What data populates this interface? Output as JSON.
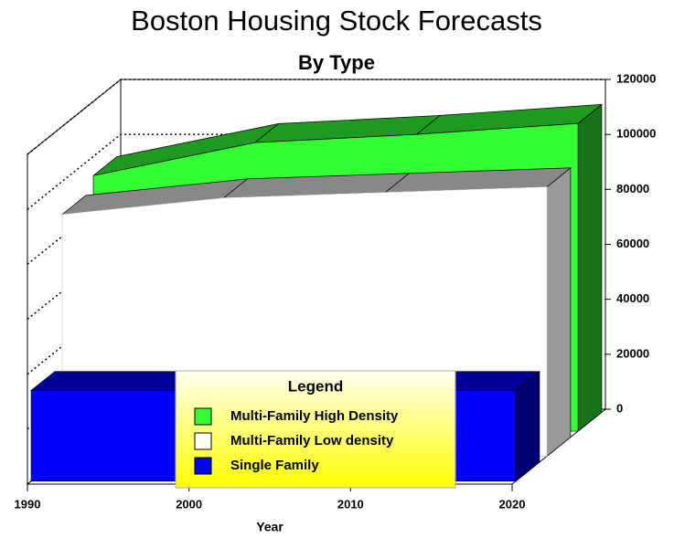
{
  "chart_data": {
    "type": "area3d",
    "title": "Boston Housing Stock Forecasts",
    "subtitle": "By Type",
    "x_label": "Year",
    "legend_title": "Legend",
    "x": [
      1990,
      2000,
      2010,
      2020
    ],
    "xlim": [
      1990,
      2020
    ],
    "xticks": [
      1990,
      2000,
      2010,
      2020
    ],
    "ylim": [
      0,
      120000
    ],
    "yticks": [
      0,
      20000,
      40000,
      60000,
      80000,
      100000,
      120000
    ],
    "grid": true,
    "series": [
      {
        "name": "Multi-Family High Density",
        "color": "#33ff33",
        "values": [
          93000,
          105000,
          108000,
          112000
        ]
      },
      {
        "name": "Multi-Family Low density",
        "color": "#ffffff",
        "values": [
          88000,
          94000,
          96000,
          98000
        ]
      },
      {
        "name": "Single Family",
        "color": "#0000ff",
        "values": [
          33000,
          33000,
          33000,
          33000
        ]
      }
    ]
  }
}
